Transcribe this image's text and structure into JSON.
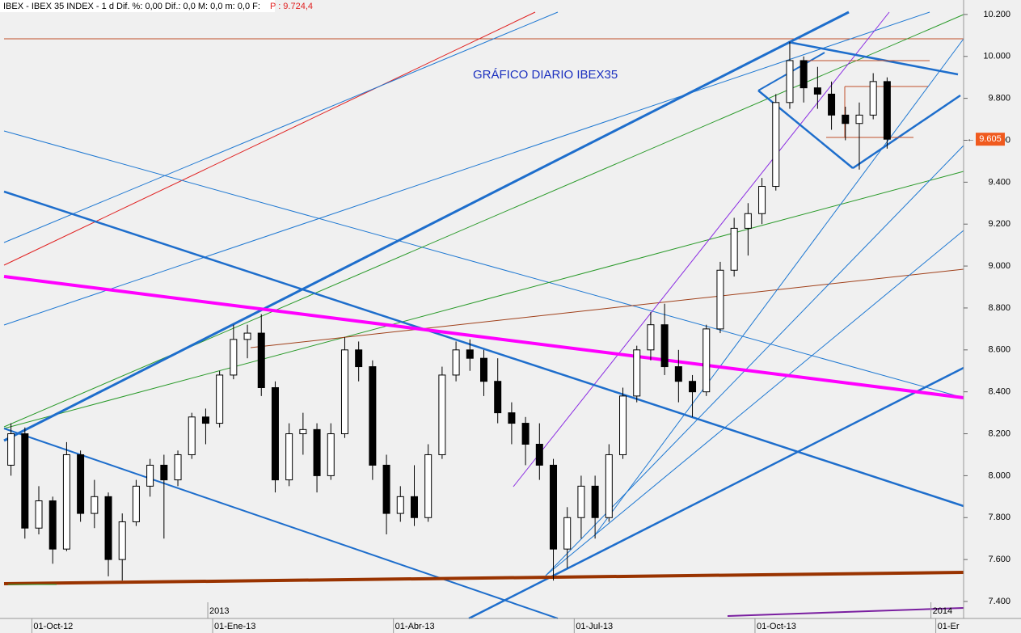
{
  "chart_data": {
    "type": "candlestick",
    "header": "IBEX - IBEX 35 INDEX - 1 d  Dif. %: 0,00  Dif.: 0,0  M: 0,0  m: 0,0  F:",
    "header_price": "P : 9.724,4",
    "title": "GRÁFICO DIARIO IBEX35",
    "categories": [
      null,
      null,
      "01-Oct-12",
      null,
      null,
      null,
      null,
      null,
      null,
      null,
      null,
      null,
      null,
      null,
      null,
      "01-Ene-13",
      null,
      null,
      null,
      null,
      null,
      null,
      null,
      null,
      null,
      null,
      null,
      null,
      "01-Abr-13",
      null,
      null,
      null,
      null,
      null,
      null,
      null,
      null,
      null,
      null,
      null,
      null,
      "01-Jul-13",
      null,
      null,
      null,
      null,
      null,
      null,
      null,
      null,
      null,
      null,
      null,
      null,
      "01-Oct-13",
      null,
      null,
      null,
      null,
      null,
      null,
      null,
      null,
      null,
      null,
      null,
      null,
      "01-Er",
      null
    ],
    "years": [
      null,
      null,
      null,
      null,
      null,
      null,
      null,
      null,
      null,
      null,
      null,
      null,
      null,
      null,
      null,
      "2013",
      null,
      null,
      null,
      null,
      null,
      null,
      null,
      null,
      null,
      null,
      null,
      null,
      null,
      null,
      null,
      null,
      null,
      null,
      null,
      null,
      null,
      null,
      null,
      null,
      null,
      null,
      null,
      null,
      null,
      null,
      null,
      null,
      null,
      null,
      null,
      null,
      null,
      null,
      null,
      null,
      null,
      null,
      null,
      null,
      null,
      null,
      null,
      null,
      null,
      null,
      null,
      "2014",
      null
    ],
    "open": [
      8050,
      8200,
      7750,
      7880,
      7650,
      8100,
      7820,
      7900,
      7600,
      7780,
      7950,
      8050,
      7980,
      8100,
      8280,
      8250,
      8480,
      8650,
      8680,
      8420,
      7980,
      8200,
      8220,
      8000,
      8200,
      8600,
      8520,
      8050,
      7820,
      7900,
      7800,
      8100,
      8480,
      8600,
      8560,
      8450,
      8300,
      8250,
      8150,
      8050,
      7650,
      7800,
      7950,
      7800,
      8100,
      8380,
      8600,
      8720,
      8520,
      8450,
      8400,
      8700,
      8980,
      9180,
      9250,
      9380,
      9780,
      9980,
      9850,
      9820,
      9720,
      9680,
      9720,
      9880,
      null,
      null,
      null,
      null,
      null
    ],
    "high": [
      8250,
      8230,
      7950,
      7900,
      8160,
      8120,
      7980,
      7920,
      7820,
      7980,
      8080,
      8100,
      8120,
      8300,
      8320,
      8500,
      8720,
      8720,
      8770,
      8450,
      8250,
      8300,
      8250,
      8250,
      8660,
      8640,
      8550,
      8100,
      7950,
      8050,
      8150,
      8520,
      8640,
      8650,
      8600,
      8560,
      8350,
      8280,
      8250,
      8080,
      7850,
      8000,
      8000,
      8150,
      8420,
      8620,
      8780,
      8820,
      8600,
      8480,
      8720,
      9020,
      9230,
      9300,
      9420,
      9820,
      10070,
      10000,
      9950,
      9880,
      9760,
      9780,
      9920,
      9900,
      null,
      null,
      null,
      null,
      null
    ],
    "low": [
      8000,
      7700,
      7720,
      7580,
      7640,
      7780,
      7750,
      7520,
      7500,
      7760,
      7900,
      7700,
      7950,
      8080,
      8150,
      8230,
      8460,
      8560,
      8380,
      7920,
      7950,
      8100,
      7920,
      7980,
      8180,
      8450,
      7980,
      7720,
      7780,
      7760,
      7780,
      8080,
      8450,
      8500,
      8380,
      8250,
      8150,
      8050,
      7980,
      7500,
      7560,
      7700,
      7700,
      7780,
      8080,
      8350,
      8550,
      8480,
      8350,
      8280,
      8380,
      8680,
      8950,
      9050,
      9200,
      9360,
      9750,
      9780,
      9750,
      9650,
      9600,
      9460,
      9700,
      9560,
      null,
      null,
      null,
      null,
      null
    ],
    "close": [
      8200,
      7750,
      7880,
      7650,
      8100,
      7820,
      7900,
      7600,
      7780,
      7950,
      8050,
      7980,
      8100,
      8280,
      8250,
      8480,
      8650,
      8680,
      8420,
      7980,
      8200,
      8220,
      8000,
      8200,
      8600,
      8520,
      8050,
      7820,
      7900,
      7800,
      8100,
      8480,
      8600,
      8560,
      8450,
      8300,
      8250,
      8150,
      8050,
      7650,
      7800,
      7950,
      7800,
      8100,
      8380,
      8600,
      8720,
      8520,
      8450,
      8400,
      8700,
      8980,
      9180,
      9250,
      9380,
      9780,
      9980,
      9850,
      9820,
      9720,
      9680,
      9720,
      9880,
      9605,
      null,
      null,
      null,
      null,
      null
    ],
    "ylim": [
      7319,
      10269
    ],
    "yticks": [
      {
        "value": 7400,
        "label": "7.400"
      },
      {
        "value": 7600,
        "label": "7.600"
      },
      {
        "value": 7800,
        "label": "7.800"
      },
      {
        "value": 8000,
        "label": "8.000"
      },
      {
        "value": 8200,
        "label": "8.200"
      },
      {
        "value": 8400,
        "label": "8.400"
      },
      {
        "value": 8600,
        "label": "8.600"
      },
      {
        "value": 8800,
        "label": "8.800"
      },
      {
        "value": 9000,
        "label": "9.000"
      },
      {
        "value": 9200,
        "label": "9.200"
      },
      {
        "value": 9400,
        "label": "9.400"
      },
      {
        "value": 9600,
        "label": "9.600"
      },
      {
        "value": 9800,
        "label": "9.800"
      },
      {
        "value": 10000,
        "label": "10.000"
      },
      {
        "value": 10200,
        "label": "10.200"
      }
    ],
    "last_price": {
      "value": 9605,
      "label": "9.605"
    },
    "up_color": "#ffffff",
    "down_color": "#000000",
    "last_price_color": "#f05a1e"
  }
}
